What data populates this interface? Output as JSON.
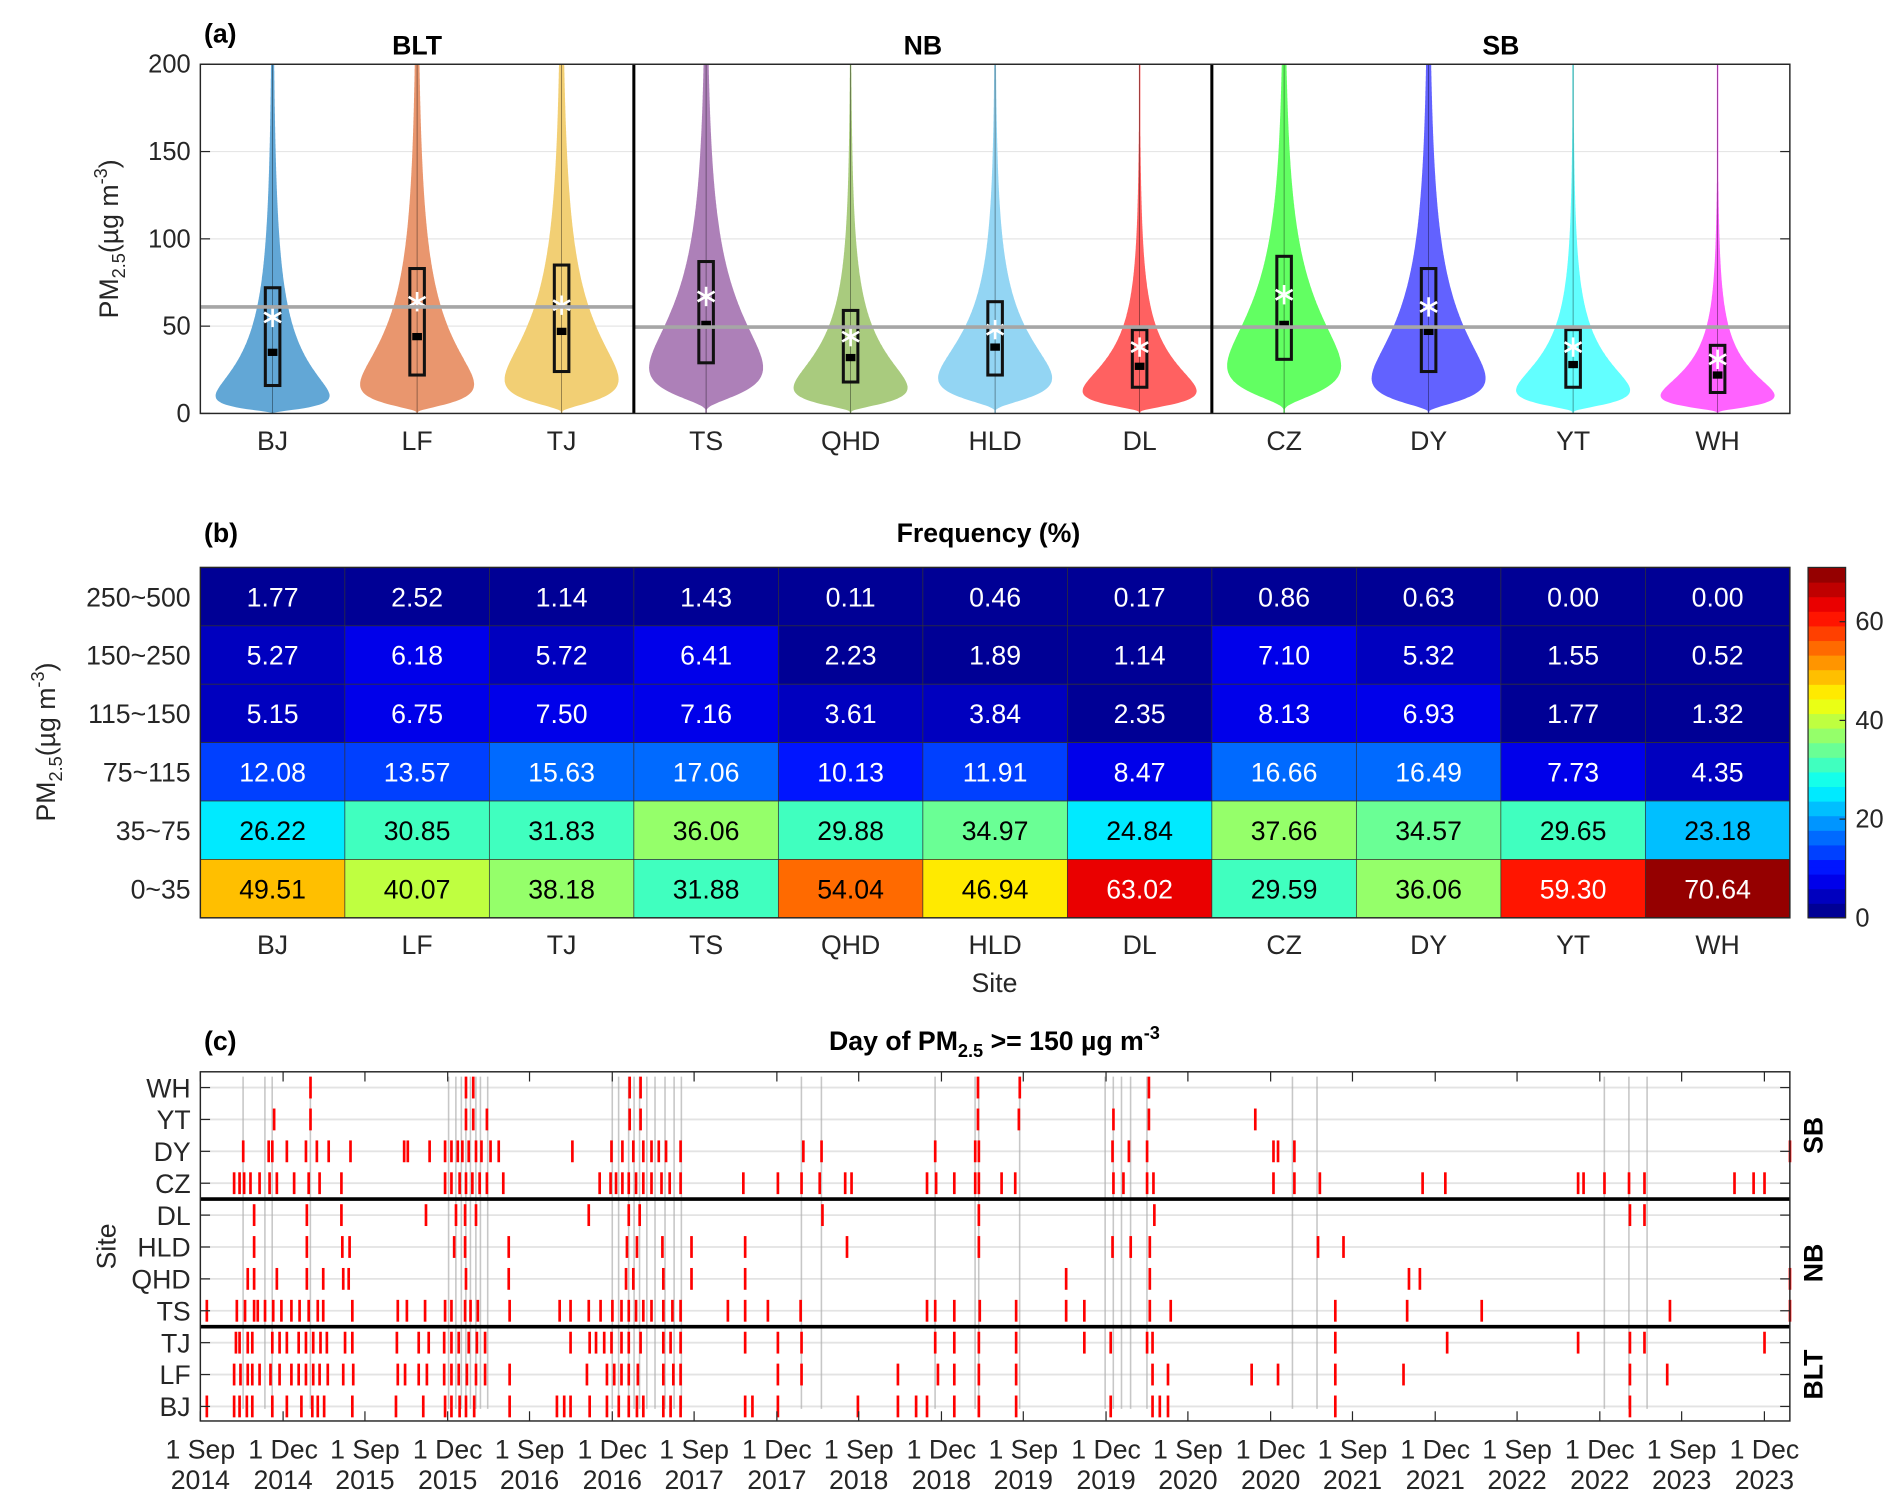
{
  "chart_data": [
    {
      "type": "violin",
      "panel_label": "(a)",
      "ylabel": {
        "main": "PM",
        "sub": "2.5",
        "unit": "(µg m",
        "sup": "-3",
        "close": ")"
      },
      "ylim": [
        0,
        200
      ],
      "yticks": [
        0,
        50,
        100,
        150,
        200
      ],
      "grid": true,
      "groups": [
        {
          "name": "BLT",
          "sites": [
            "BJ",
            "LF",
            "TJ"
          ],
          "reference_line": 61
        },
        {
          "name": "NB",
          "sites": [
            "TS",
            "QHD",
            "HLD",
            "DL"
          ],
          "reference_line": 49.5
        },
        {
          "name": "SB",
          "sites": [
            "CZ",
            "DY",
            "YT",
            "WH"
          ],
          "reference_line": 49.5
        }
      ],
      "sites": [
        {
          "name": "BJ",
          "color": "#62a7d6",
          "q1": 16,
          "median": 35,
          "q3": 72,
          "mean": 55
        },
        {
          "name": "LF",
          "color": "#e9966e",
          "q1": 22,
          "median": 44,
          "q3": 83,
          "mean": 64
        },
        {
          "name": "TJ",
          "color": "#f2cf74",
          "q1": 24,
          "median": 47,
          "q3": 85,
          "mean": 62
        },
        {
          "name": "TS",
          "color": "#ad80b8",
          "q1": 29,
          "median": 51,
          "q3": 87,
          "mean": 67
        },
        {
          "name": "QHD",
          "color": "#a9cb7e",
          "q1": 18,
          "median": 32,
          "q3": 59,
          "mean": 44
        },
        {
          "name": "HLD",
          "color": "#93d5f3",
          "q1": 22,
          "median": 38,
          "q3": 64,
          "mean": 48
        },
        {
          "name": "DL",
          "color": "#ff6161",
          "q1": 15,
          "median": 27,
          "q3": 48,
          "mean": 38
        },
        {
          "name": "CZ",
          "color": "#62ff62",
          "q1": 31,
          "median": 51,
          "q3": 90,
          "mean": 68
        },
        {
          "name": "DY",
          "color": "#6262ff",
          "q1": 24,
          "median": 47,
          "q3": 83,
          "mean": 61
        },
        {
          "name": "YT",
          "color": "#62ffff",
          "q1": 15,
          "median": 28,
          "q3": 48,
          "mean": 38
        },
        {
          "name": "WH",
          "color": "#ff62ff",
          "q1": 12,
          "median": 22,
          "q3": 39,
          "mean": 31
        }
      ]
    },
    {
      "type": "heatmap",
      "panel_label": "(b)",
      "title": "Frequency (%)",
      "xlabel": "Site",
      "ylabel": {
        "main": "PM",
        "sub": "2.5",
        "unit": "(µg m",
        "sup": "-3",
        "close": ")"
      },
      "columns": [
        "BJ",
        "LF",
        "TJ",
        "TS",
        "QHD",
        "HLD",
        "DL",
        "CZ",
        "DY",
        "YT",
        "WH"
      ],
      "rows": [
        "250~500",
        "150~250",
        "115~150",
        "75~115",
        "35~75",
        "0~35"
      ],
      "values": [
        [
          1.77,
          2.52,
          1.14,
          1.43,
          0.11,
          0.46,
          0.17,
          0.86,
          0.63,
          0.0,
          0.0
        ],
        [
          5.27,
          6.18,
          5.72,
          6.41,
          2.23,
          1.89,
          1.14,
          7.1,
          5.32,
          1.55,
          0.52
        ],
        [
          5.15,
          6.75,
          7.5,
          7.16,
          3.61,
          3.84,
          2.35,
          8.13,
          6.93,
          1.77,
          1.32
        ],
        [
          12.08,
          13.57,
          15.63,
          17.06,
          10.13,
          11.91,
          8.47,
          16.66,
          16.49,
          7.73,
          4.35
        ],
        [
          26.22,
          30.85,
          31.83,
          36.06,
          29.88,
          34.97,
          24.84,
          37.66,
          34.57,
          29.65,
          23.18
        ],
        [
          49.51,
          40.07,
          38.18,
          31.88,
          54.04,
          46.94,
          63.02,
          29.59,
          36.06,
          59.3,
          70.64
        ]
      ],
      "colormap": "jet",
      "clim": [
        0,
        71
      ],
      "colorbar_ticks": [
        0,
        20,
        40,
        60
      ]
    },
    {
      "type": "event-timeline",
      "panel_label": "(c)",
      "title": {
        "main": "Day of PM",
        "sub": "2.5",
        "rest": " >= 150 µg m",
        "sup": "-3"
      },
      "ylabel": "Site",
      "x_unit": "day index within Sep–Feb seasons",
      "xlim": [
        0,
        1748
      ],
      "xticks": [
        0,
        91,
        181,
        272,
        362,
        453,
        543,
        634,
        724,
        815,
        905,
        996,
        1086,
        1177,
        1267,
        1358,
        1448,
        1539,
        1629,
        1720
      ],
      "xtick_labels": [
        [
          "1 Sep",
          "2014"
        ],
        [
          "1 Dec",
          "2014"
        ],
        [
          "1 Sep",
          "2015"
        ],
        [
          "1 Dec",
          "2015"
        ],
        [
          "1 Sep",
          "2016"
        ],
        [
          "1 Dec",
          "2016"
        ],
        [
          "1 Sep",
          "2017"
        ],
        [
          "1 Dec",
          "2017"
        ],
        [
          "1 Sep",
          "2018"
        ],
        [
          "1 Dec",
          "2018"
        ],
        [
          "1 Sep",
          "2019"
        ],
        [
          "1 Dec",
          "2019"
        ],
        [
          "1 Sep",
          "2020"
        ],
        [
          "1 Dec",
          "2020"
        ],
        [
          "1 Sep",
          "2021"
        ],
        [
          "1 Dec",
          "2021"
        ],
        [
          "1 Sep",
          "2022"
        ],
        [
          "1 Dec",
          "2022"
        ],
        [
          "1 Sep",
          "2023"
        ],
        [
          "1 Dec",
          "2023"
        ]
      ],
      "groups": [
        {
          "name": "SB",
          "sites": [
            "WH",
            "YT",
            "DY",
            "CZ"
          ]
        },
        {
          "name": "NB",
          "sites": [
            "DL",
            "HLD",
            "QHD",
            "TS"
          ]
        },
        {
          "name": "BLT",
          "sites": [
            "TJ",
            "LF",
            "BJ"
          ]
        }
      ],
      "event_color": "#ff0000",
      "regional_color": "#b0b0b0",
      "events": {
        "WH": [
          121,
          292,
          300,
          472,
          484,
          855,
          901,
          1043
        ],
        "YT": [
          81,
          121,
          292,
          300,
          315,
          472,
          484,
          855,
          900,
          1004,
          1043,
          1160
        ],
        "DY": [
          47,
          75,
          79,
          95,
          116,
          128,
          141,
          165,
          224,
          228,
          252,
          269,
          276,
          283,
          288,
          295,
          303,
          309,
          319,
          328,
          409,
          452,
          464,
          476,
          487,
          496,
          504,
          512,
          528,
          663,
          683,
          808,
          852,
          856,
          1003,
          1021,
          1041,
          1180,
          1185,
          1203,
          1748
        ],
        "CZ": [
          37,
          43,
          48,
          55,
          65,
          76,
          84,
          103,
          119,
          131,
          155,
          269,
          276,
          285,
          292,
          299,
          307,
          315,
          333,
          439,
          451,
          457,
          464,
          471,
          479,
          487,
          496,
          507,
          516,
          528,
          597,
          635,
          661,
          681,
          709,
          716,
          799,
          809,
          829,
          852,
          856,
          881,
          896,
          1004,
          1015,
          1041,
          1048,
          1180,
          1203,
          1231,
          1344,
          1369,
          1515,
          1521,
          1544,
          1571,
          1588,
          1687,
          1708,
          1720
        ],
        "DL": [
          59,
          117,
          155,
          248,
          281,
          291,
          303,
          427,
          471,
          483,
          684,
          856,
          1049,
          1572,
          1588
        ],
        "HLD": [
          59,
          117,
          156,
          164,
          279,
          291,
          339,
          469,
          480,
          508,
          540,
          599,
          711,
          856,
          1003,
          1023,
          1044,
          1229,
          1257
        ],
        "QHD": [
          52,
          59,
          84,
          117,
          135,
          157,
          163,
          292,
          339,
          468,
          476,
          509,
          540,
          599,
          952,
          1044,
          1329,
          1341,
          1748
        ],
        "TS": [
          7,
          40,
          49,
          59,
          63,
          71,
          80,
          89,
          100,
          109,
          119,
          129,
          135,
          167,
          217,
          227,
          247,
          269,
          276,
          291,
          297,
          305,
          340,
          395,
          407,
          427,
          440,
          453,
          463,
          471,
          479,
          487,
          496,
          509,
          519,
          528,
          580,
          599,
          624,
          660,
          799,
          808,
          829,
          857,
          897,
          952,
          972,
          1044,
          1067,
          1248,
          1327,
          1409,
          1616,
          1748
        ],
        "TJ": [
          39,
          43,
          52,
          57,
          79,
          87,
          95,
          108,
          116,
          124,
          132,
          139,
          159,
          167,
          216,
          240,
          251,
          268,
          276,
          284,
          295,
          304,
          313,
          407,
          428,
          435,
          444,
          452,
          463,
          471,
          484,
          509,
          517,
          528,
          599,
          635,
          661,
          808,
          829,
          856,
          897,
          972,
          1001,
          1041,
          1047,
          1248,
          1371,
          1515,
          1572,
          1588,
          1720
        ],
        "LF": [
          37,
          44,
          52,
          57,
          65,
          77,
          87,
          100,
          108,
          116,
          124,
          131,
          140,
          157,
          168,
          217,
          225,
          240,
          249,
          268,
          276,
          284,
          293,
          303,
          313,
          340,
          425,
          447,
          455,
          463,
          471,
          481,
          509,
          520,
          528,
          635,
          661,
          767,
          811,
          829,
          856,
          897,
          1047,
          1064,
          1156,
          1185,
          1248,
          1323,
          1572,
          1613
        ],
        "BJ": [
          7,
          37,
          43,
          51,
          57,
          79,
          95,
          111,
          123,
          129,
          136,
          167,
          215,
          245,
          269,
          276,
          285,
          292,
          301,
          340,
          392,
          400,
          407,
          428,
          447,
          460,
          471,
          480,
          487,
          509,
          517,
          528,
          599,
          607,
          635,
          723,
          767,
          787,
          799,
          829,
          856,
          897,
          1001,
          1047,
          1055,
          1064,
          1248,
          1572
        ]
      },
      "regional_events": [
        47,
        71,
        79,
        121,
        273,
        281,
        287,
        292,
        297,
        303,
        308,
        316,
        453,
        460,
        471,
        477,
        483,
        491,
        500,
        511,
        521,
        529,
        661,
        683,
        808,
        852,
        856,
        901,
        995,
        1004,
        1013,
        1023,
        1041,
        1201,
        1228,
        1544,
        1571,
        1591
      ]
    }
  ]
}
